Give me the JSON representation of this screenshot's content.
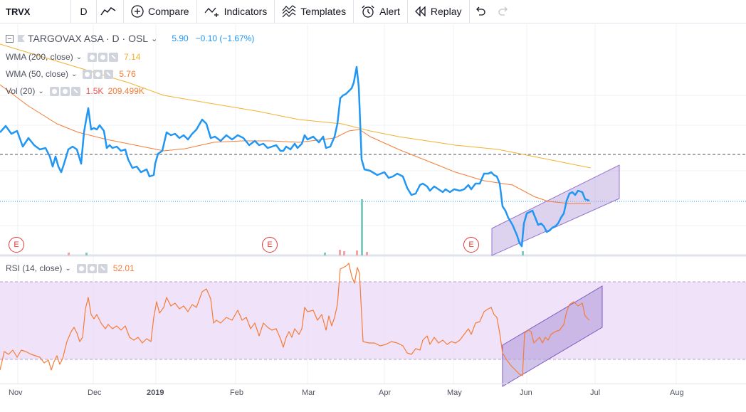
{
  "toolbar": {
    "symbol": "TRVX",
    "interval": "D",
    "compare": "Compare",
    "indicators": "Indicators",
    "templates": "Templates",
    "alert": "Alert",
    "replay": "Replay"
  },
  "legend": {
    "main": {
      "name": "TARGOVAX ASA · D · OSL",
      "price": "5.90",
      "change": "−0.10 (−1.67%)"
    },
    "wma200": {
      "name": "WMA (200, close)",
      "value": "7.14",
      "color": "#f2b12e"
    },
    "wma50": {
      "name": "WMA (50, close)",
      "value": "5.76",
      "color": "#f57c35"
    },
    "vol": {
      "name": "Vol (20)",
      "value1": "1.5K",
      "value2": "209.499K",
      "color1": "#ef5350",
      "color2": "#f57c35"
    },
    "rsi": {
      "name": "RSI (14, close)",
      "value": "52.01",
      "color": "#f57c35"
    }
  },
  "earnings_badges": [
    "E",
    "E",
    "E"
  ],
  "x_axis_labels": [
    "Nov",
    "Dec",
    "2019",
    "Feb",
    "Mar",
    "Apr",
    "May",
    "Jun",
    "Jul",
    "Aug"
  ],
  "colors": {
    "price_line": "#2196f3",
    "wma200": "#f2b12e",
    "wma50": "#f57c35",
    "rsi_line": "#f57c35",
    "rsi_band": "#e9d5f5",
    "channel_fill": "#b39ddb",
    "channel_stroke": "#7e57c2"
  }
}
